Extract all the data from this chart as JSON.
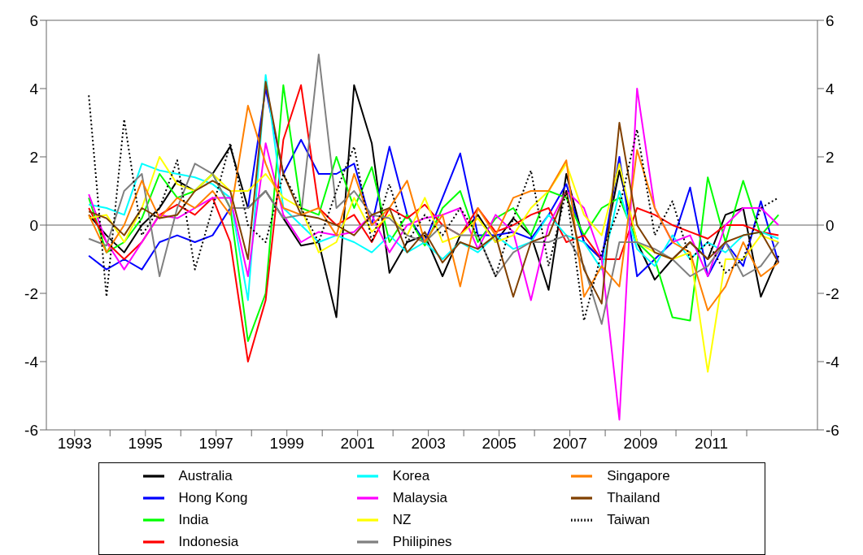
{
  "chart_data": {
    "type": "line",
    "x": [
      1993.4,
      1993.9,
      1994.4,
      1994.9,
      1995.4,
      1995.9,
      1996.4,
      1996.9,
      1997.4,
      1997.9,
      1998.4,
      1998.9,
      1999.4,
      1999.9,
      2000.4,
      2000.9,
      2001.4,
      2001.9,
      2002.4,
      2002.9,
      2003.4,
      2003.9,
      2004.4,
      2004.9,
      2005.4,
      2005.9,
      2006.4,
      2006.9,
      2007.4,
      2007.9,
      2008.4,
      2008.9,
      2009.4,
      2009.9,
      2010.4,
      2010.9,
      2011.4,
      2011.9,
      2012.4,
      2012.9
    ],
    "series": [
      {
        "name": "Australia",
        "color": "#000000",
        "values": [
          0.3,
          -0.3,
          -0.8,
          0,
          0.5,
          1.3,
          1.0,
          1.5,
          2.3,
          0.5,
          1.0,
          0.2,
          -0.6,
          -0.5,
          -2.7,
          4.1,
          2.4,
          -1.4,
          -0.5,
          -0.3,
          -1.5,
          -0.3,
          0.3,
          -0.5,
          0.2,
          -0.3,
          -1.9,
          1.5,
          -0.5,
          -1.0,
          1.6,
          -0.5,
          -1.6,
          -1.0,
          -0.5,
          -1.0,
          0.3,
          0.5,
          -2.1,
          -0.9
        ]
      },
      {
        "name": "Hong Kong",
        "color": "#0000ff",
        "values": [
          -0.9,
          -1.3,
          -1.0,
          -1.3,
          -0.5,
          -0.3,
          -0.5,
          -0.3,
          0.5,
          0.5,
          4.0,
          1.5,
          2.5,
          1.5,
          1.5,
          1.8,
          0,
          2.3,
          0.3,
          -0.5,
          0.8,
          2.1,
          -0.3,
          -0.3,
          -0.2,
          -0.4,
          0.3,
          1.2,
          -0.5,
          -1.0,
          2.0,
          -1.5,
          -1.0,
          -0.5,
          1.1,
          -1.5,
          -0.5,
          -1.2,
          0.7,
          -1.1
        ]
      },
      {
        "name": "India",
        "color": "#00ff00",
        "values": [
          0.8,
          -0.8,
          -0.5,
          0.2,
          1.5,
          0.8,
          1.0,
          1.5,
          0.5,
          -3.4,
          -2.0,
          4.1,
          0.5,
          0.3,
          2.0,
          0.5,
          1.7,
          -0.5,
          0.3,
          -0.6,
          0.5,
          1.0,
          -0.5,
          0.2,
          0.5,
          -0.3,
          1.0,
          0.8,
          -0.3,
          0.5,
          0.8,
          -0.5,
          -1.0,
          -2.7,
          -2.8,
          1.4,
          -0.5,
          1.3,
          -0.3,
          0.3
        ]
      },
      {
        "name": "Indonesia",
        "color": "#ff0000",
        "values": [
          0.5,
          -0.5,
          -1.0,
          -0.5,
          0.3,
          0.6,
          0.3,
          0.8,
          -0.5,
          -4.0,
          -2.2,
          2.5,
          4.1,
          0.5,
          0,
          0.3,
          -0.5,
          0.5,
          0.2,
          0.6,
          0,
          -0.3,
          0.5,
          -0.2,
          0,
          0.3,
          0.5,
          -0.5,
          -0.3,
          -1.0,
          -1.0,
          0.5,
          0.3,
          0,
          -0.2,
          -0.4,
          0,
          0,
          -0.2,
          -0.3
        ]
      },
      {
        "name": "Korea",
        "color": "#00ffff",
        "values": [
          0.6,
          0.5,
          0.3,
          1.8,
          1.6,
          1.5,
          1.4,
          1.2,
          0.8,
          -2.2,
          4.4,
          0.5,
          0,
          -0.5,
          -0.3,
          -0.5,
          -0.8,
          -0.3,
          -0.8,
          -0.5,
          -1.0,
          -0.5,
          -0.8,
          -0.3,
          -0.7,
          -0.5,
          0.3,
          -0.3,
          -0.5,
          -1.3,
          1.0,
          -0.7,
          -1.2,
          -0.3,
          -1.0,
          -0.5,
          -0.8,
          -0.3,
          -0.2,
          -0.4
        ]
      },
      {
        "name": "Malaysia",
        "color": "#ff00ff",
        "values": [
          0.9,
          -0.5,
          -1.3,
          -0.5,
          0.3,
          0.2,
          0.5,
          0.8,
          0.8,
          -1.5,
          2.4,
          0.3,
          -0.5,
          -0.2,
          -0.3,
          -0.2,
          0.3,
          -0.8,
          0,
          0.2,
          0.3,
          0.5,
          -0.7,
          0.3,
          -0.2,
          -2.2,
          0,
          1.0,
          0.5,
          -1.0,
          -5.7,
          4.0,
          0.5,
          -0.5,
          -0.3,
          -1.5,
          0,
          0.5,
          0.5,
          0
        ]
      },
      {
        "name": "NZ",
        "color": "#ffff00",
        "values": [
          0.2,
          0.3,
          -0.5,
          0.5,
          2.0,
          1.2,
          1.0,
          1.5,
          1.0,
          1.0,
          1.5,
          0.8,
          0.5,
          -0.8,
          -0.5,
          0.8,
          -0.2,
          0.3,
          -0.3,
          0.8,
          -0.5,
          -0.3,
          0.2,
          -0.5,
          -0.3,
          0.5,
          1.0,
          1.8,
          0.3,
          -0.3,
          1.8,
          -0.5,
          -0.8,
          -1.0,
          -0.8,
          -4.3,
          -1.0,
          -1.0,
          -0.3,
          -0.5
        ]
      },
      {
        "name": "Philipines",
        "color": "#808080",
        "values": [
          -0.4,
          -0.6,
          1.0,
          1.5,
          -1.5,
          0.5,
          1.8,
          1.5,
          0.5,
          0.5,
          1.0,
          0.2,
          0.3,
          5.0,
          0.5,
          1.0,
          0.3,
          0.2,
          -0.3,
          -0.5,
          0,
          -0.3,
          -0.3,
          -1.5,
          -0.8,
          -0.5,
          -0.5,
          -0.3,
          -1.2,
          -2.9,
          -0.5,
          -0.5,
          -0.7,
          -1.0,
          -1.5,
          -1.2,
          -0.5,
          -1.5,
          -1.2,
          -0.5
        ]
      },
      {
        "name": "Singapore",
        "color": "#ff8000",
        "values": [
          0.3,
          -0.8,
          0,
          1.3,
          0.2,
          0.8,
          0.5,
          1.0,
          0.3,
          3.5,
          1.8,
          0.5,
          0.3,
          0.5,
          -0.3,
          1.5,
          0,
          0.5,
          1.3,
          -0.5,
          0.3,
          -1.8,
          0.5,
          -0.3,
          0.8,
          1.0,
          1.0,
          1.9,
          -2.1,
          -1.2,
          -1.8,
          2.2,
          0.5,
          -0.5,
          -0.8,
          -2.5,
          -1.8,
          -0.5,
          -1.5,
          -1.1
        ]
      },
      {
        "name": "Thailand",
        "color": "#804000",
        "values": [
          0.4,
          0.2,
          -0.3,
          0.5,
          0.2,
          0.3,
          1.0,
          1.3,
          1.0,
          -1.0,
          4.2,
          1.5,
          0.3,
          0.2,
          0,
          -0.3,
          0.3,
          0.5,
          -0.8,
          -0.2,
          -1.1,
          -0.5,
          -0.7,
          -0.3,
          -2.1,
          -0.5,
          -0.3,
          1.0,
          -1.3,
          -2.3,
          3.0,
          0,
          -0.8,
          -1.0,
          -0.5,
          -1.0,
          -0.5,
          -0.3,
          -0.2,
          -1.1
        ]
      },
      {
        "name": "Taiwan",
        "color": "#000000",
        "line_style": "dotted",
        "values": [
          3.8,
          -2.1,
          3.1,
          -0.3,
          0.5,
          1.9,
          -1.3,
          0.5,
          2.4,
          0,
          -0.5,
          1.5,
          0.5,
          -0.5,
          1.0,
          2.3,
          -0.5,
          1.2,
          -0.5,
          0.3,
          -0.3,
          0.5,
          -0.3,
          -1.5,
          0.2,
          1.6,
          -1.2,
          1.0,
          -2.8,
          -0.8,
          0.5,
          2.8,
          -0.3,
          0.7,
          -1.0,
          -0.5,
          -1.4,
          -1.0,
          0.5,
          0.8
        ]
      }
    ],
    "xlim": [
      1992.2,
      2014.0
    ],
    "xticks": [
      {
        "value": 1993,
        "label": "1993"
      },
      {
        "value": 1994,
        "label": null
      },
      {
        "value": 1995,
        "label": "1995"
      },
      {
        "value": 1996,
        "label": null
      },
      {
        "value": 1997,
        "label": "1997"
      },
      {
        "value": 1998,
        "label": null
      },
      {
        "value": 1999,
        "label": "1999"
      },
      {
        "value": 2000,
        "label": null
      },
      {
        "value": 2001,
        "label": "2001"
      },
      {
        "value": 2002,
        "label": null
      },
      {
        "value": 2003,
        "label": "2003"
      },
      {
        "value": 2004,
        "label": null
      },
      {
        "value": 2005,
        "label": "2005"
      },
      {
        "value": 2006,
        "label": null
      },
      {
        "value": 2007,
        "label": "2007"
      },
      {
        "value": 2008,
        "label": null
      },
      {
        "value": 2009,
        "label": "2009"
      },
      {
        "value": 2010,
        "label": null
      },
      {
        "value": 2011,
        "label": "2011"
      },
      {
        "value": 2012,
        "label": null
      }
    ],
    "ylim": [
      -6,
      6
    ],
    "yticks": [
      -6,
      -4,
      -2,
      0,
      2,
      4,
      6
    ],
    "y2lim": [
      -6,
      6
    ],
    "y2ticks": [
      -6,
      -4,
      -2,
      0,
      2,
      4,
      6
    ],
    "ref_lines": [
      {
        "axis": "y",
        "value": 0,
        "color": "#606060"
      }
    ],
    "grid": false,
    "legend": "bottom",
    "marker": "none",
    "line_style": "solid"
  }
}
